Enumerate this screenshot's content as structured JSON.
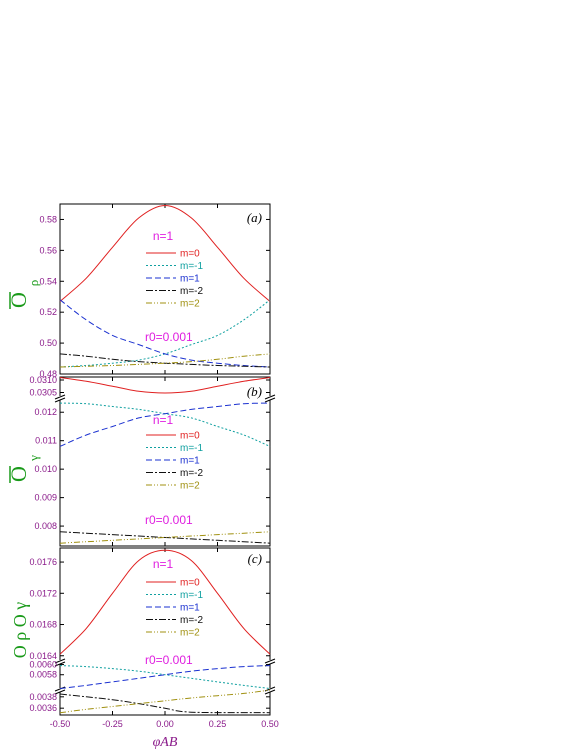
{
  "chart_data": [
    {
      "type": "line",
      "panel_label": "(a)",
      "ylabel_main": "O",
      "ylabel_sub": "ρ",
      "x": [
        -0.5,
        -0.375,
        -0.25,
        -0.125,
        0,
        0.125,
        0.25,
        0.375,
        0.5
      ],
      "xlim": [
        -0.5,
        0.5
      ],
      "ylim": [
        0.48,
        0.59
      ],
      "yticks": [
        "0.48",
        "0.50",
        "0.52",
        "0.54",
        "0.56",
        "0.58"
      ],
      "annotation_n": "n=1",
      "annotation_r0": "r0=0.001",
      "series": [
        {
          "name": "m=0",
          "values": [
            0.527,
            0.542,
            0.562,
            0.581,
            0.589,
            0.581,
            0.562,
            0.542,
            0.527
          ]
        },
        {
          "name": "m=-1",
          "values": [
            0.4845,
            0.4855,
            0.487,
            0.489,
            0.493,
            0.499,
            0.505,
            0.515,
            0.528
          ]
        },
        {
          "name": "m=1",
          "values": [
            0.528,
            0.515,
            0.505,
            0.499,
            0.493,
            0.489,
            0.487,
            0.4855,
            0.4845
          ]
        },
        {
          "name": "m=-2",
          "values": [
            0.493,
            0.4915,
            0.4895,
            0.488,
            0.487,
            0.4862,
            0.4855,
            0.485,
            0.4845
          ]
        },
        {
          "name": "m=2",
          "values": [
            0.4845,
            0.485,
            0.4855,
            0.4862,
            0.487,
            0.488,
            0.4895,
            0.4915,
            0.493
          ]
        }
      ]
    },
    {
      "type": "line",
      "panel_label": "(b)",
      "ylabel_main": "O",
      "ylabel_sub": "γ",
      "x": [
        -0.5,
        -0.375,
        -0.25,
        -0.125,
        0,
        0.125,
        0.25,
        0.375,
        0.5
      ],
      "xlim": [
        -0.5,
        0.5
      ],
      "ylim_lower": [
        0.0075,
        0.0125
      ],
      "ylim_upper": [
        0.0303,
        0.0311
      ],
      "yticks_lower": [
        "0.008",
        "0.009",
        "0.010",
        "0.011",
        "0.012"
      ],
      "yticks_upper": [
        "0.0305",
        "0.0310"
      ],
      "annotation_n": "n=1",
      "annotation_r0": "r0=0.001",
      "series": [
        {
          "name": "m=0",
          "values": [
            0.0311,
            0.03095,
            0.03075,
            0.03055,
            0.03048,
            0.03055,
            0.03075,
            0.03095,
            0.0311
          ]
        },
        {
          "name": "m=-1",
          "values": [
            0.01232,
            0.0123,
            0.0122,
            0.0121,
            0.01195,
            0.0118,
            0.0115,
            0.0112,
            0.0108
          ]
        },
        {
          "name": "m=1",
          "values": [
            0.0108,
            0.0112,
            0.0115,
            0.0118,
            0.01195,
            0.0121,
            0.0122,
            0.0123,
            0.01232
          ]
        },
        {
          "name": "m=-2",
          "values": [
            0.0078,
            0.00775,
            0.0077,
            0.00765,
            0.0076,
            0.00755,
            0.0075,
            0.00745,
            0.0074
          ]
        },
        {
          "name": "m=2",
          "values": [
            0.0074,
            0.00745,
            0.0075,
            0.00755,
            0.0076,
            0.00765,
            0.0077,
            0.00775,
            0.0078
          ]
        }
      ]
    },
    {
      "type": "line",
      "panel_label": "(c)",
      "ylabel": "O ρ O γ",
      "x": [
        -0.5,
        -0.375,
        -0.25,
        -0.125,
        0,
        0.125,
        0.25,
        0.375,
        0.5
      ],
      "xlim": [
        -0.5,
        0.5
      ],
      "xticks": [
        "-0.50",
        "-0.25",
        "0.00",
        "0.25",
        "0.50"
      ],
      "xlabel": "φAB",
      "ylim_lower": [
        0.0035,
        0.0039
      ],
      "ylim_middle": [
        0.0055,
        0.0061
      ],
      "ylim_upper": [
        0.01635,
        0.01775
      ],
      "yticks_lower": [
        "0.0036",
        "0.0038"
      ],
      "yticks_middle": [
        "0.0058",
        "0.0060"
      ],
      "yticks_upper": [
        "0.0164",
        "0.0168",
        "0.0172",
        "0.0176"
      ],
      "annotation_n": "n=1",
      "annotation_r0": "r0=0.001",
      "series": [
        {
          "name": "m=0",
          "values": [
            0.01642,
            0.01675,
            0.0172,
            0.01762,
            0.01775,
            0.01762,
            0.0172,
            0.01675,
            0.01642
          ]
        },
        {
          "name": "m=-1",
          "values": [
            0.00598,
            0.00596,
            0.00592,
            0.00587,
            0.0058,
            0.00573,
            0.00566,
            0.00559,
            0.00553
          ]
        },
        {
          "name": "m=1",
          "values": [
            0.00553,
            0.00559,
            0.00566,
            0.00573,
            0.0058,
            0.00587,
            0.00592,
            0.00596,
            0.00598
          ]
        },
        {
          "name": "m=-2",
          "values": [
            0.00385,
            0.0038,
            0.00375,
            0.00368,
            0.0036,
            0.00353,
            0.00347,
            0.00341,
            0.00352
          ]
        },
        {
          "name": "m=2",
          "values": [
            0.00352,
            0.00358,
            0.00363,
            0.00368,
            0.00373,
            0.00378,
            0.00382,
            0.00386,
            0.00392
          ]
        }
      ]
    }
  ],
  "legend": [
    "m=0",
    "m=-1",
    "m=1",
    "m=-2",
    "m=2"
  ],
  "colors": {
    "m=0": "#e02020",
    "m=-1": "#10a0a0",
    "m=1": "#1a30d0",
    "m=-2": "#101010",
    "m=2": "#a09010",
    "tick_labels": "#8a1a8a",
    "ylabels": "#1a9a1a",
    "annotations": "#e020e0"
  }
}
